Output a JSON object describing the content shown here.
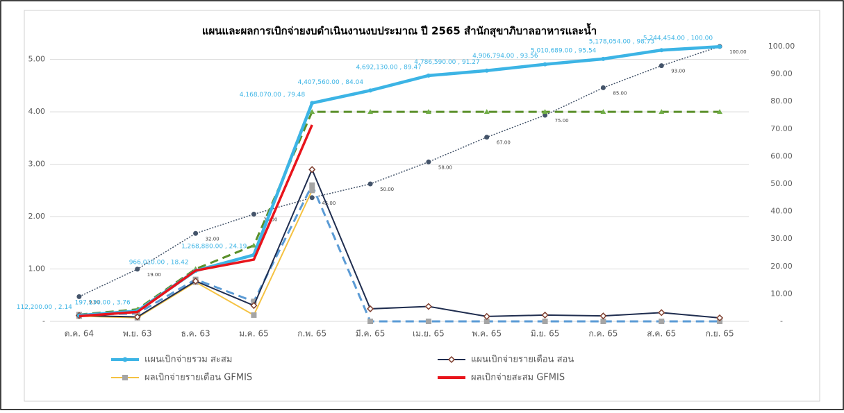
{
  "chart_data": {
    "type": "line",
    "title": "แผนและผลการเบิกจ่ายงบดำเนินงานงบประมาณ ปี 2565  สำนักสุขาภิบาลอาหารและน้ำ",
    "categories": [
      "ต.ค. 64",
      "พ.ย. 63",
      "ธ.ค. 63",
      "ม.ค. 65",
      "ก.พ. 65",
      "มี.ค. 65",
      "เม.ย. 65",
      "พ.ค. 65",
      "มิ.ย. 65",
      "ก.ค. 65",
      "ส.ค. 65",
      "ก.ย. 65"
    ],
    "ylim": [
      0,
      5300000
    ],
    "yticks": [
      {
        "value": 0,
        "label": "-"
      },
      {
        "value": 1000000,
        "label": "1.00"
      },
      {
        "value": 2000000,
        "label": "2.00"
      },
      {
        "value": 3000000,
        "label": "3.00"
      },
      {
        "value": 4000000,
        "label": "4.00"
      },
      {
        "value": 5000000,
        "label": "5.00"
      }
    ],
    "y2lim": [
      0,
      101
    ],
    "y2ticks": [
      {
        "value": 0,
        "label": "-"
      },
      {
        "value": 10,
        "label": "10.00"
      },
      {
        "value": 20,
        "label": "20.00"
      },
      {
        "value": 30,
        "label": "30.00"
      },
      {
        "value": 40,
        "label": "40.00"
      },
      {
        "value": 50,
        "label": "50.00"
      },
      {
        "value": 60,
        "label": "60.00"
      },
      {
        "value": 70,
        "label": "70.00"
      },
      {
        "value": 80,
        "label": "80.00"
      },
      {
        "value": 90,
        "label": "90.00"
      },
      {
        "value": 100,
        "label": "100.00"
      }
    ],
    "grid": true,
    "legend": "bottom",
    "series": [
      {
        "axis": "y2",
        "color": "#44546a",
        "style": "dotted",
        "marker": "circle",
        "values": [
          9,
          19,
          32,
          39,
          45,
          50,
          58,
          67,
          75,
          85,
          93,
          100
        ],
        "value_labels": [
          "9.00",
          "19.00",
          "32.00",
          "39.00",
          "45.00",
          "50.00",
          "58.00",
          "67.00",
          "75.00",
          "85.00",
          "93.00",
          "100.00"
        ]
      },
      {
        "color": "#5a8f29",
        "style": "dashed",
        "marker": "triangle",
        "values": [
          130000,
          230000,
          1000000,
          1450000,
          4000000,
          4000000,
          4000000,
          4000000,
          4000000,
          4000000,
          4000000,
          4000000
        ]
      },
      {
        "color": "#5b9bd5",
        "style": "dashed",
        "marker": "square",
        "values": [
          130000,
          150000,
          800000,
          380000,
          2600000,
          0,
          0,
          0,
          0,
          0,
          0,
          0
        ]
      },
      {
        "name": "ผลเบิกจ่ายรายเดือน GFMIS",
        "color": "#f5c242",
        "style": "solid",
        "marker": "square",
        "values": [
          100000,
          70000,
          750000,
          120000,
          2500000,
          null,
          null,
          null,
          null,
          null,
          null,
          null
        ]
      },
      {
        "name": "แผนเบิกจ่ายรายเดือน สอน",
        "color": "#1f2d4f",
        "style": "solid",
        "marker": "diamond",
        "values": [
          112200,
          84930,
          768880,
          302870,
          2899190,
          239490,
          284570,
          94460,
          120204,
          103895,
          167365,
          66400
        ]
      },
      {
        "name": "แผนเบิกจ่ายรวม สะสม",
        "color": "#3cb4e5",
        "style": "solid",
        "marker": "circle",
        "values": [
          112200,
          197130,
          966010,
          1268880,
          4168070,
          4407560,
          4692130,
          4786590,
          4906794,
          5010689,
          5178054,
          5244454
        ],
        "value_labels": [
          "112,200.00 , 2.14",
          "197,130.00 , 3.76",
          "966,010.00 , 18.42",
          "1,268,880.00 , 24.19",
          "4,168,070.00 , 79.48",
          "4,407,560.00 , 84.04",
          "4,692,130.00 , 89.47",
          "4,786,590.00 , 91.27",
          "4,906,794.00 , 93.56",
          "5,010,689.00 , 95.54",
          "5,178,054.00 , 98.73",
          "5,244,454.00 , 100.00"
        ]
      },
      {
        "name": "ผลเบิกจ่ายสะสม GFMIS",
        "color": "#e8141b",
        "style": "solid",
        "marker": "none",
        "values": [
          100000,
          180000,
          970000,
          1180000,
          3750000,
          null,
          null,
          null,
          null,
          null,
          null,
          null
        ]
      }
    ]
  }
}
